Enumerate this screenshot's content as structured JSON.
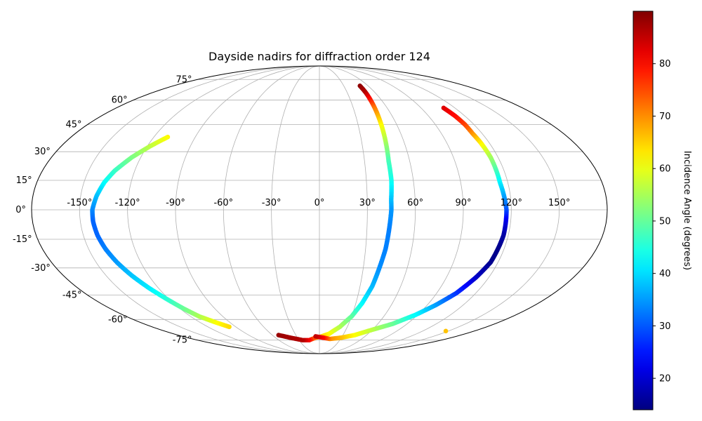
{
  "chart_data": {
    "type": "scatter",
    "projection": "mollweide",
    "title": "Dayside nadirs for diffraction order 124",
    "x_tick_labels": [
      "-150°",
      "-120°",
      "-90°",
      "-60°",
      "-30°",
      "0°",
      "30°",
      "60°",
      "90°",
      "120°",
      "150°"
    ],
    "x_ticks": [
      -150,
      -120,
      -90,
      -60,
      -30,
      0,
      30,
      60,
      90,
      120,
      150
    ],
    "y_tick_labels": [
      "-75°",
      "-60°",
      "-45°",
      "-30°",
      "-15°",
      "0°",
      "15°",
      "30°",
      "45°",
      "60°",
      "75°"
    ],
    "y_ticks": [
      -75,
      -60,
      -45,
      -30,
      -15,
      0,
      15,
      30,
      45,
      60,
      75
    ],
    "grid": true,
    "colormap": "jet",
    "colorbar": {
      "label": "Incidence Angle (degrees)",
      "range": [
        14,
        90
      ],
      "ticks": [
        20,
        30,
        40,
        50,
        60,
        70,
        80
      ],
      "tick_labels": [
        "20",
        "30",
        "40",
        "50",
        "60",
        "70",
        "80"
      ],
      "placement": "right"
    },
    "series": [
      {
        "points": [
          [
            -110,
            38,
            62
          ],
          [
            -118,
            33,
            57
          ],
          [
            -126,
            27,
            52
          ],
          [
            -133,
            20,
            47
          ],
          [
            -137,
            14,
            43
          ],
          [
            -140,
            7,
            38
          ],
          [
            -142,
            0,
            34
          ],
          [
            -142,
            -6,
            31
          ],
          [
            -141,
            -13,
            31
          ],
          [
            -139,
            -20,
            33
          ],
          [
            -136,
            -27,
            35
          ],
          [
            -132,
            -34,
            38
          ],
          [
            -127,
            -41,
            41
          ],
          [
            -122,
            -47,
            45
          ],
          [
            -117,
            -53,
            50
          ],
          [
            -112,
            -58,
            55
          ],
          [
            -104,
            -62,
            61
          ],
          [
            -97,
            -65,
            64
          ]
        ]
      },
      {
        "points": [
          [
            50,
            70,
            89
          ],
          [
            50,
            65,
            86
          ],
          [
            49,
            55,
            72
          ],
          [
            48,
            45,
            62
          ],
          [
            47,
            35,
            55
          ],
          [
            46,
            25,
            48
          ],
          [
            46,
            15,
            44
          ],
          [
            45,
            5,
            38
          ],
          [
            45,
            0,
            35
          ],
          [
            44,
            -10,
            33
          ],
          [
            43,
            -20,
            33
          ],
          [
            41,
            -30,
            34
          ],
          [
            39,
            -40,
            37
          ],
          [
            35,
            -50,
            42
          ],
          [
            30,
            -58,
            49
          ],
          [
            22,
            -65,
            55
          ],
          [
            12,
            -70,
            61
          ],
          [
            3,
            -72,
            65
          ],
          [
            -5,
            -73,
            70
          ],
          [
            -15,
            -75,
            80
          ],
          [
            -25,
            -75,
            86
          ],
          [
            -40,
            -73,
            87
          ],
          [
            -52,
            -71,
            88
          ]
        ]
      },
      {
        "points": [
          [
            110,
            55,
            83
          ],
          [
            112,
            50,
            80
          ],
          [
            113,
            45,
            76
          ],
          [
            113,
            40,
            70
          ],
          [
            114,
            35,
            63
          ],
          [
            115,
            27,
            55
          ],
          [
            115,
            20,
            48
          ],
          [
            115,
            14,
            42
          ],
          [
            116,
            7,
            36
          ],
          [
            117,
            0,
            30
          ],
          [
            117,
            -6,
            22
          ],
          [
            117,
            -13,
            17
          ],
          [
            116,
            -20,
            15
          ],
          [
            115,
            -27,
            15
          ],
          [
            111,
            -35,
            19
          ],
          [
            105,
            -44,
            27
          ],
          [
            97,
            -51,
            35
          ],
          [
            88,
            -57,
            42
          ],
          [
            75,
            -63,
            50
          ],
          [
            60,
            -67,
            56
          ],
          [
            45,
            -71,
            61
          ],
          [
            30,
            -73,
            66
          ],
          [
            15,
            -74,
            70
          ],
          [
            5,
            -73,
            80
          ],
          [
            -5,
            -72,
            85
          ]
        ]
      },
      {
        "points": [
          [
            147,
            -68,
            66
          ]
        ]
      }
    ]
  }
}
